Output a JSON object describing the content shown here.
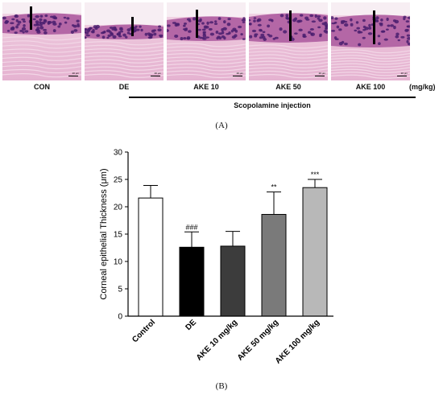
{
  "panel_a": {
    "tiles": [
      {
        "label": "CON",
        "scale": "20 μm"
      },
      {
        "label": "DE",
        "scale": "20 μm"
      },
      {
        "label": "AKE 10",
        "scale": "20 μm"
      },
      {
        "label": "AKE 50",
        "scale": "20 μm"
      },
      {
        "label": "AKE 100",
        "scale": "20 μm"
      }
    ],
    "unit": "(mg/kg)",
    "injection_label": "Scopolamine injection",
    "caption": "(A)"
  },
  "panel_b": {
    "caption": "(B)"
  },
  "chart_data": {
    "type": "bar",
    "title": "",
    "xlabel": "",
    "ylabel": "Corneal epithelial Thickness (μm)",
    "ylim": [
      0,
      30
    ],
    "yticks": [
      0,
      5,
      10,
      15,
      20,
      25,
      30
    ],
    "categories": [
      "Control",
      "DE",
      "AKE 10 mg/kg",
      "AKE 50 mg/kg",
      "AKE 100 mg/kg"
    ],
    "values": [
      21.6,
      12.6,
      12.8,
      18.6,
      23.5
    ],
    "errors": [
      2.3,
      2.8,
      2.7,
      4.1,
      1.5
    ],
    "significance": [
      "",
      "###",
      "",
      "**",
      "***"
    ],
    "bar_colors": [
      "#ffffff",
      "#000000",
      "#3c3c3c",
      "#7a7a7a",
      "#b8b8b8"
    ]
  }
}
